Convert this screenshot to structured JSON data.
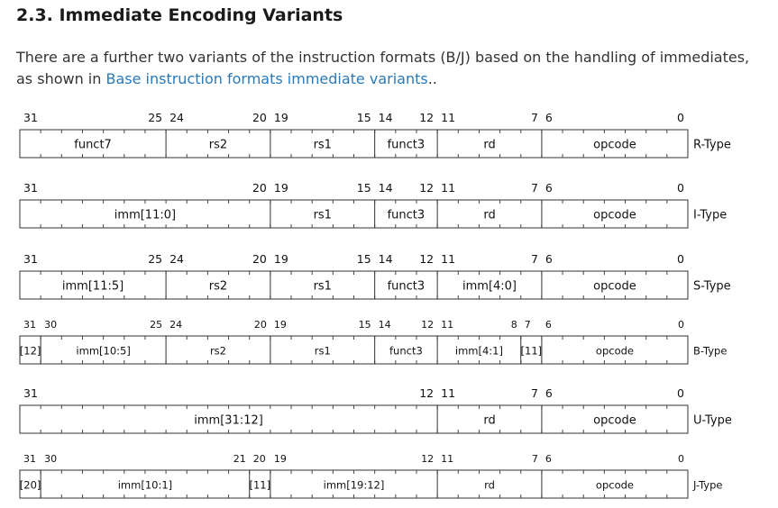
{
  "heading": "2.3. Immediate Encoding Variants",
  "intro": {
    "before": "There are a further two variants of the instruction formats (B/J) based on the handling of immediates,",
    "line2_before": "as shown in ",
    "link": "Base instruction formats immediate variants",
    "after": ".."
  },
  "formats": [
    {
      "type": "R-Type",
      "bits": [
        {
          "label": "31",
          "bit": 31,
          "side": "start"
        },
        {
          "label": "25",
          "bit": 25,
          "side": "end"
        },
        {
          "label": "24",
          "bit": 24,
          "side": "start"
        },
        {
          "label": "20",
          "bit": 20,
          "side": "end"
        },
        {
          "label": "19",
          "bit": 19,
          "side": "start"
        },
        {
          "label": "15",
          "bit": 15,
          "side": "end"
        },
        {
          "label": "14",
          "bit": 14,
          "side": "start"
        },
        {
          "label": "12",
          "bit": 12,
          "side": "end"
        },
        {
          "label": "11",
          "bit": 11,
          "side": "start"
        },
        {
          "label": "7",
          "bit": 7,
          "side": "end"
        },
        {
          "label": "6",
          "bit": 6,
          "side": "start"
        },
        {
          "label": "0",
          "bit": 0,
          "side": "end"
        }
      ],
      "fields": [
        {
          "label": "funct7",
          "hi": 31,
          "lo": 25
        },
        {
          "label": "rs2",
          "hi": 24,
          "lo": 20
        },
        {
          "label": "rs1",
          "hi": 19,
          "lo": 15
        },
        {
          "label": "funct3",
          "hi": 14,
          "lo": 12
        },
        {
          "label": "rd",
          "hi": 11,
          "lo": 7
        },
        {
          "label": "opcode",
          "hi": 6,
          "lo": 0
        }
      ]
    },
    {
      "type": "I-Type",
      "bits": [
        {
          "label": "31",
          "bit": 31,
          "side": "start"
        },
        {
          "label": "20",
          "bit": 20,
          "side": "end"
        },
        {
          "label": "19",
          "bit": 19,
          "side": "start"
        },
        {
          "label": "15",
          "bit": 15,
          "side": "end"
        },
        {
          "label": "14",
          "bit": 14,
          "side": "start"
        },
        {
          "label": "12",
          "bit": 12,
          "side": "end"
        },
        {
          "label": "11",
          "bit": 11,
          "side": "start"
        },
        {
          "label": "7",
          "bit": 7,
          "side": "end"
        },
        {
          "label": "6",
          "bit": 6,
          "side": "start"
        },
        {
          "label": "0",
          "bit": 0,
          "side": "end"
        }
      ],
      "fields": [
        {
          "label": "imm[11:0]",
          "hi": 31,
          "lo": 20
        },
        {
          "label": "rs1",
          "hi": 19,
          "lo": 15
        },
        {
          "label": "funct3",
          "hi": 14,
          "lo": 12
        },
        {
          "label": "rd",
          "hi": 11,
          "lo": 7
        },
        {
          "label": "opcode",
          "hi": 6,
          "lo": 0
        }
      ]
    },
    {
      "type": "S-Type",
      "bits": [
        {
          "label": "31",
          "bit": 31,
          "side": "start"
        },
        {
          "label": "25",
          "bit": 25,
          "side": "end"
        },
        {
          "label": "24",
          "bit": 24,
          "side": "start"
        },
        {
          "label": "20",
          "bit": 20,
          "side": "end"
        },
        {
          "label": "19",
          "bit": 19,
          "side": "start"
        },
        {
          "label": "15",
          "bit": 15,
          "side": "end"
        },
        {
          "label": "14",
          "bit": 14,
          "side": "start"
        },
        {
          "label": "12",
          "bit": 12,
          "side": "end"
        },
        {
          "label": "11",
          "bit": 11,
          "side": "start"
        },
        {
          "label": "7",
          "bit": 7,
          "side": "end"
        },
        {
          "label": "6",
          "bit": 6,
          "side": "start"
        },
        {
          "label": "0",
          "bit": 0,
          "side": "end"
        }
      ],
      "fields": [
        {
          "label": "imm[11:5]",
          "hi": 31,
          "lo": 25
        },
        {
          "label": "rs2",
          "hi": 24,
          "lo": 20
        },
        {
          "label": "rs1",
          "hi": 19,
          "lo": 15
        },
        {
          "label": "funct3",
          "hi": 14,
          "lo": 12
        },
        {
          "label": "imm[4:0]",
          "hi": 11,
          "lo": 7
        },
        {
          "label": "opcode",
          "hi": 6,
          "lo": 0
        }
      ]
    },
    {
      "type": "B-Type",
      "small": true,
      "bits": [
        {
          "label": "31",
          "bit": 31,
          "side": "start"
        },
        {
          "label": "30",
          "bit": 30,
          "side": "start"
        },
        {
          "label": "25",
          "bit": 25,
          "side": "end"
        },
        {
          "label": "24",
          "bit": 24,
          "side": "start"
        },
        {
          "label": "20",
          "bit": 20,
          "side": "end"
        },
        {
          "label": "19",
          "bit": 19,
          "side": "start"
        },
        {
          "label": "15",
          "bit": 15,
          "side": "end"
        },
        {
          "label": "14",
          "bit": 14,
          "side": "start"
        },
        {
          "label": "12",
          "bit": 12,
          "side": "end"
        },
        {
          "label": "11",
          "bit": 11,
          "side": "start"
        },
        {
          "label": "8",
          "bit": 8,
          "side": "end"
        },
        {
          "label": "7",
          "bit": 7,
          "side": "start"
        },
        {
          "label": "6",
          "bit": 6,
          "side": "start"
        },
        {
          "label": "0",
          "bit": 0,
          "side": "end"
        }
      ],
      "fields": [
        {
          "label": "[12]",
          "hi": 31,
          "lo": 31
        },
        {
          "label": "imm[10:5]",
          "hi": 30,
          "lo": 25
        },
        {
          "label": "rs2",
          "hi": 24,
          "lo": 20
        },
        {
          "label": "rs1",
          "hi": 19,
          "lo": 15
        },
        {
          "label": "funct3",
          "hi": 14,
          "lo": 12
        },
        {
          "label": "imm[4:1]",
          "hi": 11,
          "lo": 8
        },
        {
          "label": "[11]",
          "hi": 7,
          "lo": 7
        },
        {
          "label": "opcode",
          "hi": 6,
          "lo": 0
        }
      ]
    },
    {
      "type": "U-Type",
      "bits": [
        {
          "label": "31",
          "bit": 31,
          "side": "start"
        },
        {
          "label": "12",
          "bit": 12,
          "side": "end"
        },
        {
          "label": "11",
          "bit": 11,
          "side": "start"
        },
        {
          "label": "7",
          "bit": 7,
          "side": "end"
        },
        {
          "label": "6",
          "bit": 6,
          "side": "start"
        },
        {
          "label": "0",
          "bit": 0,
          "side": "end"
        }
      ],
      "fields": [
        {
          "label": "imm[31:12]",
          "hi": 31,
          "lo": 12
        },
        {
          "label": "rd",
          "hi": 11,
          "lo": 7
        },
        {
          "label": "opcode",
          "hi": 6,
          "lo": 0
        }
      ]
    },
    {
      "type": "J-Type",
      "small": true,
      "bits": [
        {
          "label": "31",
          "bit": 31,
          "side": "start"
        },
        {
          "label": "30",
          "bit": 30,
          "side": "start"
        },
        {
          "label": "21",
          "bit": 21,
          "side": "end"
        },
        {
          "label": "20",
          "bit": 20,
          "side": "start"
        },
        {
          "label": "19",
          "bit": 19,
          "side": "start"
        },
        {
          "label": "12",
          "bit": 12,
          "side": "end"
        },
        {
          "label": "11",
          "bit": 11,
          "side": "start"
        },
        {
          "label": "7",
          "bit": 7,
          "side": "end"
        },
        {
          "label": "6",
          "bit": 6,
          "side": "start"
        },
        {
          "label": "0",
          "bit": 0,
          "side": "end"
        }
      ],
      "fields": [
        {
          "label": "[20]",
          "hi": 31,
          "lo": 31
        },
        {
          "label": "imm[10:1]",
          "hi": 30,
          "lo": 21
        },
        {
          "label": "[11]",
          "hi": 20,
          "lo": 20
        },
        {
          "label": "imm[19:12]",
          "hi": 19,
          "lo": 12
        },
        {
          "label": "rd",
          "hi": 11,
          "lo": 7
        },
        {
          "label": "opcode",
          "hi": 6,
          "lo": 0
        }
      ]
    }
  ]
}
